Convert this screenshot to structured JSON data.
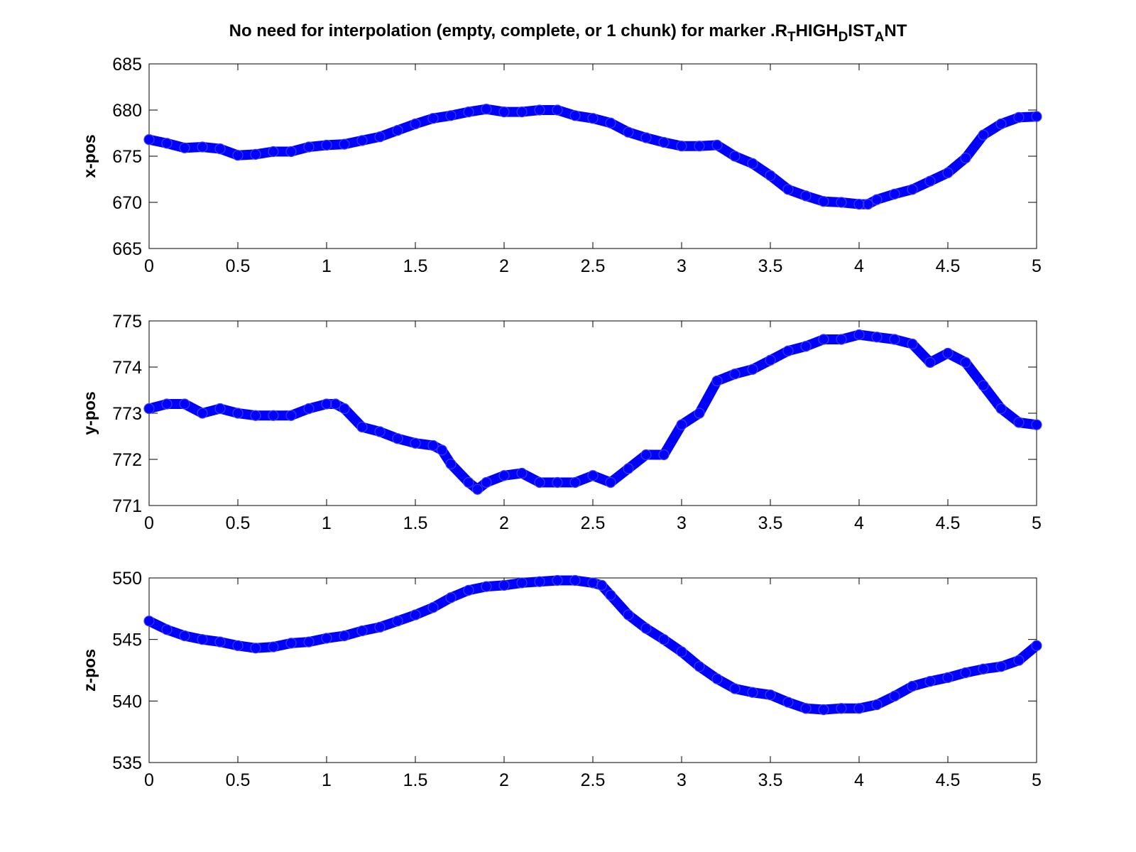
{
  "title": {
    "parts": [
      {
        "text": "No need for interpolation (empty, complete, or 1 chunk) for marker .R",
        "sub": false
      },
      {
        "text": "T",
        "sub": true
      },
      {
        "text": "HIGH",
        "sub": false
      },
      {
        "text": "D",
        "sub": true
      },
      {
        "text": "IST",
        "sub": false
      },
      {
        "text": "A",
        "sub": true
      },
      {
        "text": "NT",
        "sub": false
      }
    ]
  },
  "colors": {
    "series": "#0000ff",
    "axes": "#000000",
    "background": "#ffffff"
  },
  "chart_data": [
    {
      "type": "scatter",
      "ylabel": "x-pos",
      "xlim": [
        0,
        5
      ],
      "ylim": [
        665,
        685
      ],
      "xticks": [
        "0",
        "0.5",
        "1",
        "1.5",
        "2",
        "2.5",
        "3",
        "3.5",
        "4",
        "4.5",
        "5"
      ],
      "yticks": [
        "665",
        "670",
        "675",
        "680",
        "685"
      ],
      "marker": "circle",
      "grid": false,
      "x": [
        0,
        0.1,
        0.2,
        0.3,
        0.4,
        0.5,
        0.6,
        0.7,
        0.8,
        0.9,
        1.0,
        1.1,
        1.2,
        1.3,
        1.4,
        1.5,
        1.6,
        1.7,
        1.8,
        1.9,
        2.0,
        2.1,
        2.2,
        2.3,
        2.4,
        2.5,
        2.6,
        2.7,
        2.8,
        2.9,
        3.0,
        3.1,
        3.2,
        3.3,
        3.4,
        3.5,
        3.6,
        3.7,
        3.8,
        3.9,
        4.0,
        4.05,
        4.1,
        4.2,
        4.3,
        4.4,
        4.5,
        4.6,
        4.7,
        4.8,
        4.9,
        5.0
      ],
      "y": [
        676.8,
        676.4,
        675.9,
        676.0,
        675.8,
        675.1,
        675.2,
        675.5,
        675.5,
        676.0,
        676.2,
        676.3,
        676.7,
        677.1,
        677.8,
        678.5,
        679.1,
        679.4,
        679.8,
        680.1,
        679.8,
        679.8,
        680.0,
        680.0,
        679.4,
        679.1,
        678.6,
        677.6,
        677.0,
        676.5,
        676.1,
        676.1,
        676.2,
        675.0,
        674.2,
        672.9,
        671.4,
        670.7,
        670.1,
        670.0,
        669.8,
        669.8,
        670.3,
        670.9,
        671.4,
        672.3,
        673.2,
        674.8,
        677.3,
        678.5,
        679.2,
        679.3
      ]
    },
    {
      "type": "scatter",
      "ylabel": "y-pos",
      "xlim": [
        0,
        5
      ],
      "ylim": [
        771,
        775
      ],
      "xticks": [
        "0",
        "0.5",
        "1",
        "1.5",
        "2",
        "2.5",
        "3",
        "3.5",
        "4",
        "4.5",
        "5"
      ],
      "yticks": [
        "771",
        "772",
        "773",
        "774",
        "775"
      ],
      "marker": "circle",
      "grid": false,
      "x": [
        0,
        0.1,
        0.2,
        0.3,
        0.4,
        0.5,
        0.6,
        0.7,
        0.8,
        0.9,
        1.0,
        1.05,
        1.1,
        1.2,
        1.3,
        1.4,
        1.5,
        1.6,
        1.65,
        1.7,
        1.8,
        1.85,
        1.9,
        2.0,
        2.1,
        2.2,
        2.3,
        2.4,
        2.5,
        2.6,
        2.7,
        2.8,
        2.9,
        3.0,
        3.1,
        3.2,
        3.3,
        3.4,
        3.5,
        3.6,
        3.7,
        3.8,
        3.9,
        4.0,
        4.1,
        4.2,
        4.3,
        4.4,
        4.5,
        4.6,
        4.7,
        4.8,
        4.9,
        5.0
      ],
      "y": [
        773.1,
        773.2,
        773.2,
        773.0,
        773.1,
        773.0,
        772.95,
        772.95,
        772.95,
        773.1,
        773.2,
        773.2,
        773.1,
        772.7,
        772.6,
        772.45,
        772.35,
        772.3,
        772.2,
        771.9,
        771.5,
        771.35,
        771.5,
        771.65,
        771.7,
        771.5,
        771.5,
        771.5,
        771.65,
        771.5,
        771.8,
        772.1,
        772.1,
        772.75,
        773.0,
        773.7,
        773.85,
        773.95,
        774.15,
        774.35,
        774.45,
        774.6,
        774.6,
        774.7,
        774.65,
        774.6,
        774.5,
        774.1,
        774.3,
        774.1,
        773.6,
        773.1,
        772.8,
        772.75
      ]
    },
    {
      "type": "scatter",
      "ylabel": "z-pos",
      "xlim": [
        0,
        5
      ],
      "ylim": [
        535,
        550
      ],
      "xticks": [
        "0",
        "0.5",
        "1",
        "1.5",
        "2",
        "2.5",
        "3",
        "3.5",
        "4",
        "4.5",
        "5"
      ],
      "yticks": [
        "535",
        "540",
        "545",
        "550"
      ],
      "marker": "circle",
      "grid": false,
      "x": [
        0,
        0.1,
        0.2,
        0.3,
        0.4,
        0.5,
        0.6,
        0.7,
        0.8,
        0.9,
        1.0,
        1.1,
        1.2,
        1.3,
        1.4,
        1.5,
        1.6,
        1.7,
        1.8,
        1.9,
        2.0,
        2.1,
        2.2,
        2.3,
        2.4,
        2.5,
        2.55,
        2.6,
        2.7,
        2.8,
        2.9,
        3.0,
        3.1,
        3.2,
        3.3,
        3.4,
        3.5,
        3.6,
        3.7,
        3.8,
        3.9,
        4.0,
        4.1,
        4.2,
        4.3,
        4.4,
        4.5,
        4.6,
        4.7,
        4.8,
        4.9,
        5.0
      ],
      "y": [
        546.5,
        545.8,
        545.3,
        545.0,
        544.8,
        544.5,
        544.3,
        544.4,
        544.7,
        544.8,
        545.1,
        545.3,
        545.7,
        546.0,
        546.5,
        547.0,
        547.6,
        548.4,
        549.0,
        549.3,
        549.4,
        549.6,
        549.7,
        549.8,
        549.8,
        549.6,
        549.4,
        548.6,
        547.0,
        545.9,
        545.0,
        544.0,
        542.8,
        541.8,
        541.0,
        540.7,
        540.5,
        539.9,
        539.4,
        539.3,
        539.4,
        539.4,
        539.7,
        540.4,
        541.2,
        541.6,
        541.9,
        542.3,
        542.6,
        542.8,
        543.3,
        544.5
      ]
    }
  ]
}
